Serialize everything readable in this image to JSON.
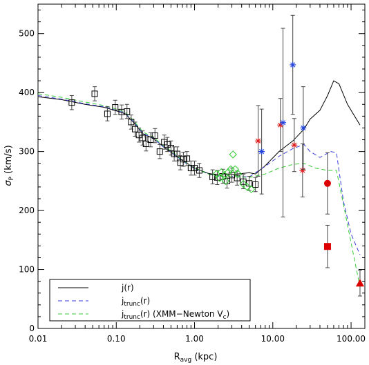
{
  "chart_data": {
    "type": "scatter",
    "xscale": "log",
    "xlim": [
      0.01,
      150
    ],
    "ylim": [
      0,
      550
    ],
    "xlabel_main": "R",
    "xlabel_sub": "avg",
    "xlabel_tail": " (kpc)",
    "ylabel_main": "σ",
    "ylabel_sub": "P",
    "ylabel_tail": " (km/s)",
    "xticks": [
      {
        "value": 0.01,
        "label": "0.01"
      },
      {
        "value": 0.1,
        "label": "0.10"
      },
      {
        "value": 1,
        "label": "1.00"
      },
      {
        "value": 10,
        "label": "10.00"
      },
      {
        "value": 100,
        "label": "100.00"
      }
    ],
    "yticks": [
      {
        "value": 0,
        "label": "0"
      },
      {
        "value": 100,
        "label": "100"
      },
      {
        "value": 200,
        "label": "200"
      },
      {
        "value": 300,
        "label": "300"
      },
      {
        "value": 400,
        "label": "400"
      },
      {
        "value": 500,
        "label": "500"
      }
    ],
    "legend": {
      "placement": "bottom-left",
      "entries": [
        {
          "text": "j(r)",
          "style": "solid",
          "color": "#000000"
        },
        {
          "pre": "j",
          "sub": "trunc",
          "post": "(r)",
          "style": "dashed",
          "color": "#3a3ad8"
        },
        {
          "pre": "j",
          "sub": "trunc",
          "post": "(r)  (XMM−Newton V",
          "sub2": "c",
          "post2": ")",
          "style": "dashed",
          "color": "#33cc33"
        }
      ]
    },
    "series": [
      {
        "marker": "square",
        "color": "#000000",
        "points": [
          [
            0.027,
            383,
            12
          ],
          [
            0.053,
            398,
            12
          ],
          [
            0.077,
            364,
            12
          ],
          [
            0.097,
            375,
            12
          ],
          [
            0.117,
            367,
            12
          ],
          [
            0.137,
            368,
            12
          ],
          [
            0.155,
            350,
            12
          ],
          [
            0.174,
            338,
            12
          ],
          [
            0.195,
            328,
            12
          ],
          [
            0.217,
            323,
            12
          ],
          [
            0.24,
            313,
            12
          ],
          [
            0.275,
            320,
            12
          ],
          [
            0.312,
            327,
            12
          ],
          [
            0.36,
            300,
            12
          ],
          [
            0.41,
            316,
            12
          ],
          [
            0.45,
            312,
            12
          ],
          [
            0.5,
            306,
            12
          ],
          [
            0.55,
            296,
            12
          ],
          [
            0.6,
            296,
            12
          ],
          [
            0.66,
            281,
            12
          ],
          [
            0.72,
            287,
            12
          ],
          [
            0.8,
            288,
            12
          ],
          [
            0.9,
            272,
            12
          ],
          [
            1.0,
            272,
            12
          ],
          [
            1.15,
            268,
            12
          ],
          [
            1.7,
            257,
            12
          ],
          [
            1.95,
            256,
            12
          ],
          [
            2.3,
            258,
            12
          ],
          [
            2.6,
            250,
            12
          ],
          [
            3.0,
            260,
            12
          ],
          [
            3.5,
            255,
            12
          ],
          [
            4.2,
            249,
            12
          ],
          [
            5.0,
            246,
            12
          ],
          [
            6.0,
            244,
            12
          ]
        ]
      },
      {
        "marker": "diamond",
        "color": "#33cc33",
        "points": [
          [
            1.9,
            262
          ],
          [
            2.1,
            255
          ],
          [
            2.2,
            265
          ],
          [
            2.4,
            260
          ],
          [
            2.5,
            250
          ],
          [
            2.7,
            265
          ],
          [
            2.9,
            270
          ],
          [
            3.1,
            295
          ],
          [
            3.3,
            270
          ],
          [
            3.6,
            262
          ],
          [
            4.2,
            245
          ],
          [
            4.7,
            240
          ],
          [
            5.3,
            236
          ]
        ]
      },
      {
        "marker": "asterisk",
        "color": "#dd2222",
        "points": [
          [
            6.5,
            318,
            60
          ],
          [
            12.5,
            345,
            45
          ],
          [
            18.8,
            311,
            45
          ],
          [
            24.0,
            268,
            45
          ]
        ]
      },
      {
        "marker": "asterisk",
        "color": "#2244dd",
        "points": [
          [
            7.2,
            300,
            72
          ],
          [
            13.5,
            349,
            160
          ],
          [
            18.0,
            447,
            84
          ],
          [
            24.5,
            340,
            70
          ]
        ]
      },
      {
        "marker": "circle",
        "color": "#dd0000",
        "points": [
          [
            50,
            246,
            52
          ]
        ]
      },
      {
        "marker": "filled-square",
        "color": "#dd0000",
        "points": [
          [
            50,
            139,
            36
          ]
        ]
      },
      {
        "marker": "triangle",
        "color": "#dd0000",
        "points": [
          [
            130,
            77,
            22
          ]
        ]
      }
    ],
    "lines": [
      {
        "name": "j(r)",
        "color": "#000000",
        "dash": "",
        "points": [
          [
            0.01,
            393
          ],
          [
            0.02,
            388
          ],
          [
            0.04,
            380
          ],
          [
            0.07,
            375
          ],
          [
            0.1,
            369
          ],
          [
            0.13,
            364
          ],
          [
            0.17,
            348
          ],
          [
            0.22,
            330
          ],
          [
            0.3,
            322
          ],
          [
            0.4,
            308
          ],
          [
            0.55,
            295
          ],
          [
            0.7,
            285
          ],
          [
            1.0,
            272
          ],
          [
            1.5,
            263
          ],
          [
            2.0,
            260
          ],
          [
            3.0,
            261
          ],
          [
            5.0,
            264
          ],
          [
            6.0,
            262
          ],
          [
            8.0,
            276
          ],
          [
            12.0,
            300
          ],
          [
            18.0,
            318
          ],
          [
            25.0,
            338
          ],
          [
            30.0,
            355
          ],
          [
            40.0,
            370
          ],
          [
            50.0,
            395
          ],
          [
            60.0,
            420
          ],
          [
            70.0,
            415
          ],
          [
            90.0,
            380
          ],
          [
            130.0,
            345
          ]
        ]
      },
      {
        "name": "jtrunc-blue",
        "color": "#3a3ad8",
        "dash": "6,4",
        "points": [
          [
            0.01,
            395
          ],
          [
            0.02,
            389
          ],
          [
            0.04,
            381
          ],
          [
            0.07,
            376
          ],
          [
            0.1,
            370
          ],
          [
            0.13,
            365
          ],
          [
            0.17,
            349
          ],
          [
            0.22,
            331
          ],
          [
            0.3,
            322
          ],
          [
            0.4,
            308
          ],
          [
            0.55,
            295
          ],
          [
            0.7,
            284
          ],
          [
            1.0,
            271
          ],
          [
            1.5,
            262
          ],
          [
            2.0,
            258
          ],
          [
            3.0,
            258
          ],
          [
            5.0,
            257
          ],
          [
            8.0,
            275
          ],
          [
            12.0,
            292
          ],
          [
            18.0,
            305
          ],
          [
            25.0,
            312
          ],
          [
            30.0,
            300
          ],
          [
            40.0,
            290
          ],
          [
            55.0,
            300
          ],
          [
            65.0,
            298
          ],
          [
            80.0,
            215
          ],
          [
            100.0,
            160
          ],
          [
            130.0,
            125
          ]
        ]
      },
      {
        "name": "jtrunc-green",
        "color": "#33cc33",
        "dash": "6,4",
        "points": [
          [
            0.01,
            398
          ],
          [
            0.02,
            392
          ],
          [
            0.04,
            384
          ],
          [
            0.07,
            378
          ],
          [
            0.1,
            372
          ],
          [
            0.13,
            367
          ],
          [
            0.17,
            351
          ],
          [
            0.22,
            333
          ],
          [
            0.3,
            324
          ],
          [
            0.4,
            310
          ],
          [
            0.55,
            297
          ],
          [
            0.7,
            285
          ],
          [
            1.0,
            272
          ],
          [
            1.5,
            262
          ],
          [
            2.0,
            258
          ],
          [
            3.0,
            258
          ],
          [
            5.0,
            256
          ],
          [
            8.0,
            262
          ],
          [
            12.0,
            272
          ],
          [
            18.0,
            278
          ],
          [
            25.0,
            280
          ],
          [
            35.0,
            272
          ],
          [
            50.0,
            268
          ],
          [
            65.0,
            268
          ],
          [
            80.0,
            210
          ],
          [
            100.0,
            145
          ],
          [
            130.0,
            70
          ]
        ]
      }
    ]
  }
}
